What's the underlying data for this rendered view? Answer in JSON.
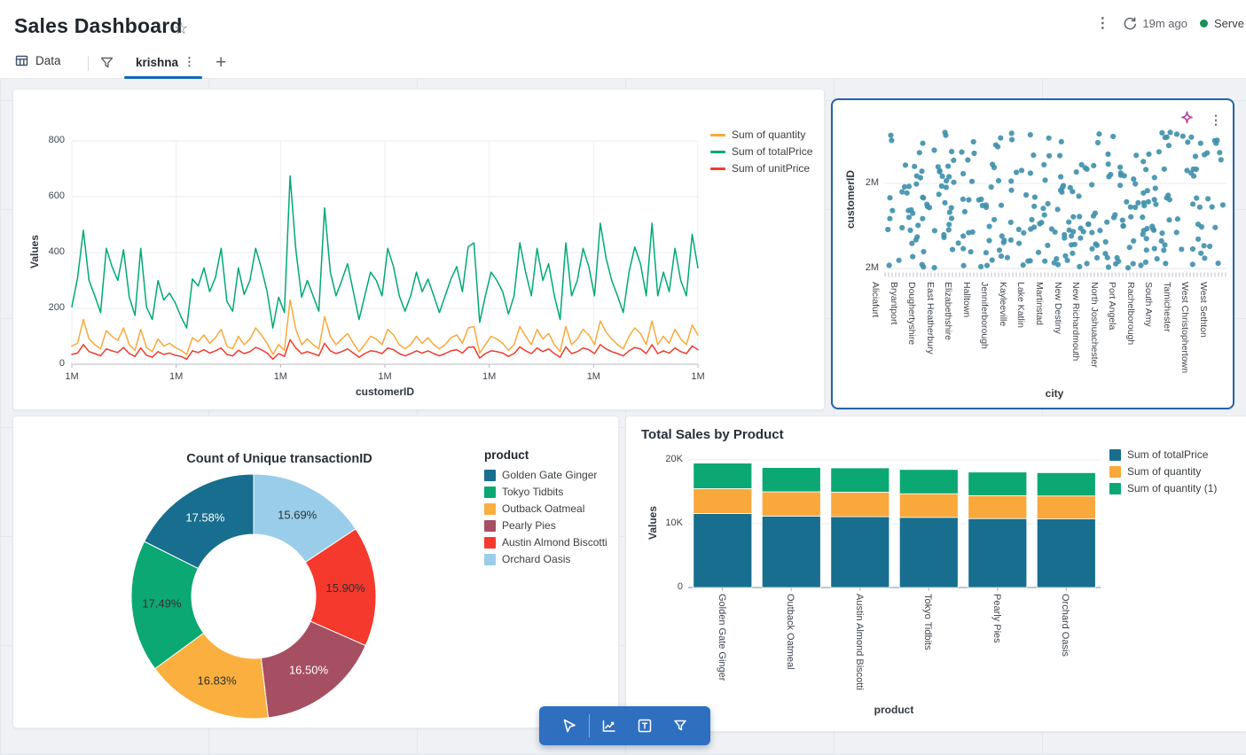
{
  "header": {
    "title": "Sales Dashboard",
    "refresh_label": "19m ago",
    "server_label": "Serve",
    "icons": [
      "star-icon",
      "kebab-icon",
      "refresh-icon",
      "status-dot"
    ]
  },
  "tabs": {
    "data_label": "Data",
    "active_label": "krishna",
    "icons": [
      "table-icon",
      "filter-icon",
      "kebab-icon",
      "plus-icon"
    ]
  },
  "toolbar": {
    "icons": [
      "pointer-icon",
      "line-chart-icon",
      "text-box-icon",
      "filter-icon"
    ],
    "color": "#2e6fc0"
  },
  "scatter_card_icons": [
    "sparkle-icon",
    "kebab-icon"
  ],
  "chart_data": [
    {
      "type": "line",
      "xlabel": "customerID",
      "ylabel": "Values",
      "ylim": [
        0,
        800
      ],
      "ytick_labels": [
        "0",
        "200",
        "400",
        "600",
        "800"
      ],
      "yticks": [
        0,
        200,
        400,
        600,
        800
      ],
      "x_tick_labels": [
        "1M",
        "1M",
        "1M",
        "1M",
        "1M",
        "1M",
        "1M"
      ],
      "grid": true,
      "legend_position": "right-top",
      "series": [
        {
          "name": "Sum of quantity",
          "color": "#f9a83a",
          "values": [
            65,
            75,
            160,
            90,
            70,
            55,
            120,
            100,
            85,
            130,
            70,
            50,
            125,
            60,
            45,
            90,
            65,
            75,
            60,
            50,
            35,
            95,
            80,
            105,
            75,
            95,
            125,
            65,
            55,
            100,
            70,
            90,
            130,
            105,
            75,
            35,
            70,
            50,
            230,
            125,
            70,
            90,
            70,
            55,
            170,
            100,
            70,
            90,
            110,
            75,
            45,
            70,
            100,
            90,
            70,
            125,
            105,
            70,
            55,
            70,
            100,
            75,
            95,
            70,
            55,
            70,
            95,
            105,
            75,
            130,
            135,
            40,
            70,
            100,
            90,
            75,
            50,
            70,
            135,
            100,
            70,
            125,
            90,
            110,
            70,
            45,
            135,
            70,
            90,
            125,
            105,
            70,
            155,
            115,
            90,
            70,
            55,
            100,
            130,
            110,
            70,
            155,
            70,
            100,
            75,
            125,
            90,
            70,
            140,
            105
          ]
        },
        {
          "name": "Sum of totalPrice",
          "color": "#00a878",
          "values": [
            205,
            310,
            480,
            300,
            245,
            185,
            415,
            350,
            300,
            410,
            240,
            175,
            415,
            205,
            160,
            300,
            230,
            255,
            220,
            170,
            130,
            305,
            280,
            345,
            260,
            310,
            415,
            225,
            190,
            345,
            250,
            300,
            415,
            345,
            260,
            130,
            240,
            185,
            675,
            410,
            240,
            300,
            245,
            190,
            560,
            330,
            245,
            300,
            360,
            260,
            160,
            245,
            330,
            300,
            245,
            415,
            350,
            245,
            190,
            245,
            330,
            260,
            305,
            245,
            185,
            245,
            305,
            350,
            260,
            420,
            435,
            150,
            245,
            330,
            300,
            260,
            180,
            245,
            435,
            330,
            245,
            415,
            300,
            360,
            245,
            160,
            435,
            245,
            300,
            415,
            350,
            245,
            505,
            380,
            300,
            245,
            185,
            330,
            420,
            360,
            245,
            505,
            245,
            330,
            260,
            415,
            300,
            245,
            465,
            345
          ]
        },
        {
          "name": "Sum of unitPrice",
          "color": "#ef3b2d",
          "values": [
            35,
            40,
            70,
            45,
            38,
            30,
            55,
            48,
            42,
            60,
            38,
            28,
            58,
            32,
            25,
            45,
            35,
            40,
            32,
            28,
            18,
            48,
            42,
            52,
            40,
            48,
            58,
            35,
            30,
            50,
            38,
            45,
            60,
            52,
            40,
            18,
            38,
            28,
            88,
            58,
            38,
            45,
            38,
            30,
            75,
            48,
            38,
            45,
            55,
            40,
            25,
            38,
            48,
            45,
            38,
            58,
            52,
            38,
            30,
            38,
            48,
            40,
            48,
            38,
            30,
            38,
            48,
            52,
            40,
            60,
            62,
            22,
            38,
            48,
            45,
            40,
            28,
            38,
            62,
            48,
            38,
            58,
            45,
            55,
            38,
            25,
            62,
            38,
            45,
            58,
            52,
            38,
            70,
            55,
            45,
            38,
            30,
            48,
            60,
            55,
            38,
            70,
            38,
            48,
            40,
            58,
            45,
            38,
            65,
            52
          ]
        }
      ]
    },
    {
      "type": "scatter",
      "xlabel": "city",
      "ylabel": "customerID",
      "ytick_labels": [
        "2M",
        "2M"
      ],
      "x_tick_labels": [
        "Aliciafurt",
        "Bryantport",
        "Doughertyshire",
        "East Heatherbury",
        "Elizabethshire",
        "Halltown",
        "Jenniferborough",
        "Kayleeville",
        "Lake Katlin",
        "Martinstad",
        "New Destiny",
        "New Richardmouth",
        "North Joshuachester",
        "Port Angela",
        "Rachelborough",
        "South Amy",
        "Tamichester",
        "West Christophertown",
        "West Sethton"
      ],
      "point_count": 310,
      "dot_color": "#4191ae",
      "seed": 7
    },
    {
      "type": "pie",
      "title": "Count of Unique transactionID",
      "legend_title": "product",
      "donut": true,
      "slices": [
        {
          "label": "Golden Gate Ginger",
          "value": 17.58,
          "color": "#176e8e",
          "text_color": "#ffffff"
        },
        {
          "label": "Tokyo Tidbits",
          "value": 17.49,
          "color": "#0ca873",
          "text_color": "#2b2f33"
        },
        {
          "label": "Outback Oatmeal",
          "value": 16.83,
          "color": "#fbaf3f",
          "text_color": "#2b2f33"
        },
        {
          "label": "Pearly Pies",
          "value": 16.5,
          "color": "#a64f63",
          "text_color": "#ffffff"
        },
        {
          "label": "Austin Almond Biscotti",
          "value": 15.9,
          "color": "#f5392c",
          "text_color": "#2b2f33"
        },
        {
          "label": "Orchard Oasis",
          "value": 15.69,
          "color": "#99cdea",
          "text_color": "#2b2f33"
        }
      ]
    },
    {
      "type": "bar",
      "stacked": true,
      "title": "Total Sales by Product",
      "xlabel": "product",
      "ylabel": "Values",
      "ylim": [
        0,
        20000
      ],
      "ytick_labels": [
        "0",
        "10K",
        "20K"
      ],
      "categories": [
        "Golden Gate Ginger",
        "Outback Oatmeal",
        "Austin Almond Biscotti",
        "Tokyo Tidbits",
        "Pearly Pies",
        "Orchard Oasis"
      ],
      "series": [
        {
          "name": "Sum of totalPrice",
          "color": "#176e8e",
          "values": [
            11600,
            11200,
            11100,
            11000,
            10800,
            10750
          ]
        },
        {
          "name": "Sum of quantity",
          "color": "#f9a83b",
          "values": [
            3900,
            3800,
            3850,
            3700,
            3600,
            3600
          ]
        },
        {
          "name": "Sum of quantity (1)",
          "color": "#0ca873",
          "values": [
            4000,
            3800,
            3800,
            3800,
            3700,
            3650
          ]
        }
      ]
    }
  ]
}
